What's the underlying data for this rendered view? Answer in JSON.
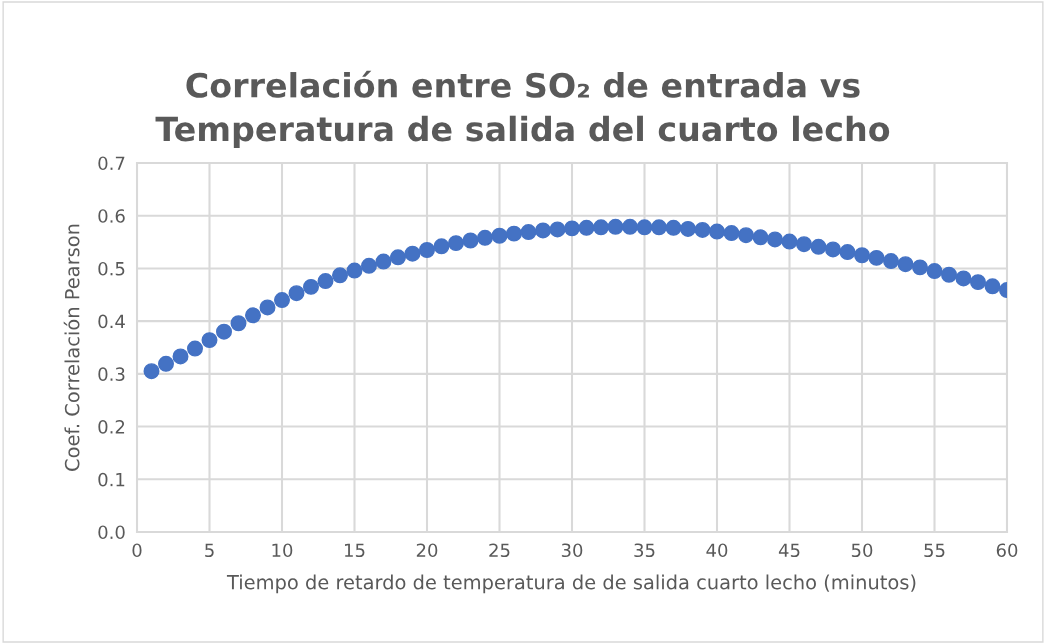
{
  "chart_data": {
    "type": "scatter",
    "title": "Correlación entre SO₂ de entrada vs\nTemperatura de salida del cuarto lecho",
    "xlabel": "Tiempo de retardo de temperatura de de salida cuarto lecho (minutos)",
    "ylabel": "Coef. Correlación Pearson",
    "x": [
      1,
      2,
      3,
      4,
      5,
      6,
      7,
      8,
      9,
      10,
      11,
      12,
      13,
      14,
      15,
      16,
      17,
      18,
      19,
      20,
      21,
      22,
      23,
      24,
      25,
      26,
      27,
      28,
      29,
      30,
      31,
      32,
      33,
      34,
      35,
      36,
      37,
      38,
      39,
      40,
      41,
      42,
      43,
      44,
      45,
      46,
      47,
      48,
      49,
      50,
      51,
      52,
      53,
      54,
      55,
      56,
      57,
      58,
      59,
      60
    ],
    "series": [
      {
        "color": "#4472c4",
        "values": [
          0.305,
          0.319,
          0.333,
          0.348,
          0.364,
          0.38,
          0.396,
          0.411,
          0.426,
          0.44,
          0.453,
          0.465,
          0.476,
          0.487,
          0.496,
          0.505,
          0.513,
          0.521,
          0.528,
          0.535,
          0.542,
          0.548,
          0.553,
          0.558,
          0.562,
          0.566,
          0.569,
          0.572,
          0.574,
          0.576,
          0.577,
          0.578,
          0.579,
          0.579,
          0.578,
          0.578,
          0.577,
          0.575,
          0.573,
          0.57,
          0.567,
          0.563,
          0.559,
          0.555,
          0.551,
          0.546,
          0.541,
          0.536,
          0.531,
          0.525,
          0.52,
          0.514,
          0.508,
          0.502,
          0.495,
          0.488,
          0.481,
          0.474,
          0.466,
          0.459
        ]
      }
    ],
    "xlim": [
      0,
      60
    ],
    "xticks": [
      0,
      5,
      10,
      15,
      20,
      25,
      30,
      35,
      40,
      45,
      50,
      55,
      60
    ],
    "ylim": [
      0,
      0.7
    ],
    "yticks": [
      {
        "value": 0,
        "label": "0.0"
      },
      {
        "value": 0.1,
        "label": "0.1"
      },
      {
        "value": 0.2,
        "label": "0.2"
      },
      {
        "value": 0.3,
        "label": "0.3"
      },
      {
        "value": 0.4,
        "label": "0.4"
      },
      {
        "value": 0.5,
        "label": "0.5"
      },
      {
        "value": 0.6,
        "label": "0.6"
      },
      {
        "value": 0.7,
        "label": "0.7"
      }
    ],
    "grid": true,
    "marker": "circle",
    "legend": false
  }
}
